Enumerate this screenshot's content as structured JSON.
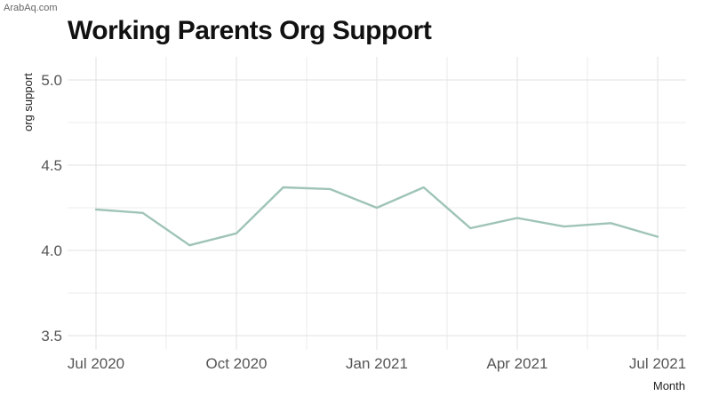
{
  "watermark": "ArabAq.com",
  "chart_data": {
    "type": "line",
    "title": "Working Parents Org Support",
    "xlabel": "Month",
    "ylabel": "org support",
    "x": [
      "2020-07",
      "2020-08",
      "2020-09",
      "2020-10",
      "2020-11",
      "2020-12",
      "2021-01",
      "2021-02",
      "2021-03",
      "2021-04",
      "2021-05",
      "2021-06",
      "2021-07"
    ],
    "x_ticks": [
      "2020-07",
      "2020-10",
      "2021-01",
      "2021-04",
      "2021-07"
    ],
    "x_tick_labels": [
      "Jul 2020",
      "Oct 2020",
      "Jan 2021",
      "Apr 2021",
      "Jul 2021"
    ],
    "y_ticks": [
      3.5,
      4.0,
      4.5,
      5.0
    ],
    "y_tick_labels": [
      "3.5",
      "4.0",
      "4.5",
      "5.0"
    ],
    "ylim": [
      3.5,
      5.0
    ],
    "series": [
      {
        "values": [
          4.24,
          4.22,
          4.03,
          4.1,
          4.37,
          4.36,
          4.25,
          4.37,
          4.13,
          4.19,
          4.14,
          4.16,
          4.08
        ]
      }
    ],
    "line_color": "#9fc4b7",
    "grid": true,
    "grid_color": "#e6e6e6"
  }
}
